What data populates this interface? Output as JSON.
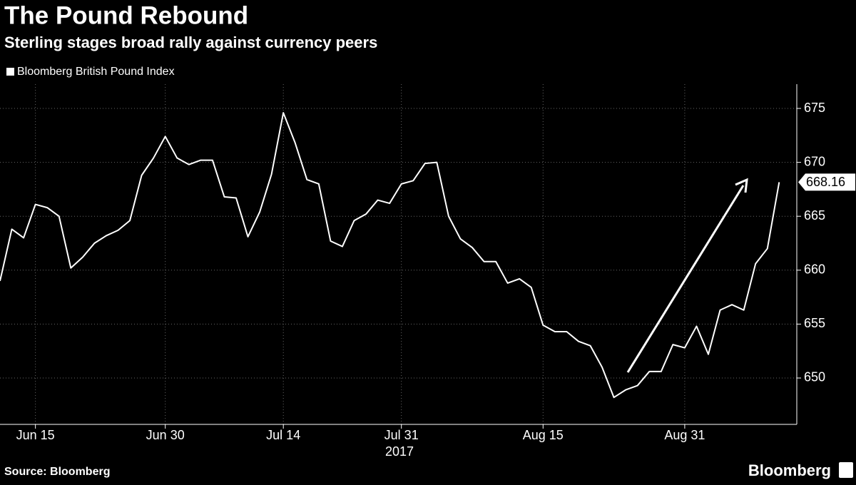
{
  "chart_data": {
    "type": "line",
    "title": "The Pound Rebound",
    "subtitle": "Sterling stages broad rally against currency peers",
    "xlabel": "2017",
    "source": "Source: Bloomberg",
    "brand": "Bloomberg",
    "categories": [
      null,
      null,
      null,
      "Jun 15",
      null,
      null,
      null,
      null,
      null,
      null,
      null,
      null,
      null,
      null,
      "Jun 30",
      null,
      null,
      null,
      null,
      null,
      null,
      null,
      null,
      null,
      "Jul 14",
      null,
      null,
      null,
      null,
      null,
      null,
      null,
      null,
      null,
      "Jul 31",
      null,
      null,
      null,
      null,
      null,
      null,
      null,
      null,
      null,
      null,
      null,
      "Aug 15",
      null,
      null,
      null,
      null,
      null,
      null,
      null,
      null,
      null,
      null,
      null,
      "Aug 31",
      null,
      null,
      null,
      null,
      null,
      null,
      null,
      null
    ],
    "series": [
      {
        "name": "Bloomberg British Pound Index",
        "color": "#ffffff",
        "values": [
          659,
          663.8,
          663,
          666.1,
          665.8,
          665,
          660.2,
          661.2,
          662.5,
          663.2,
          663.7,
          664.6,
          668.8,
          670.4,
          672.4,
          670.4,
          669.8,
          670.2,
          670.2,
          666.8,
          666.7,
          663.1,
          665.4,
          668.9,
          674.6,
          671.8,
          668.4,
          668,
          662.7,
          662.2,
          664.6,
          665.2,
          666.5,
          666.2,
          668,
          668.3,
          669.9,
          670,
          665,
          662.9,
          662.1,
          660.8,
          660.8,
          658.8,
          659.2,
          658.4,
          654.9,
          654.3,
          654.3,
          653.4,
          653,
          651,
          648.2,
          648.9,
          649.3,
          650.6,
          650.6,
          653.1,
          652.8,
          654.8,
          652.2,
          656.3,
          656.8,
          656.3,
          660.6,
          662,
          668.16
        ]
      }
    ],
    "ylim": [
      645.7,
      677.25
    ],
    "yticks": [
      650,
      655,
      660,
      665,
      670,
      675
    ],
    "grid": true
  }
}
